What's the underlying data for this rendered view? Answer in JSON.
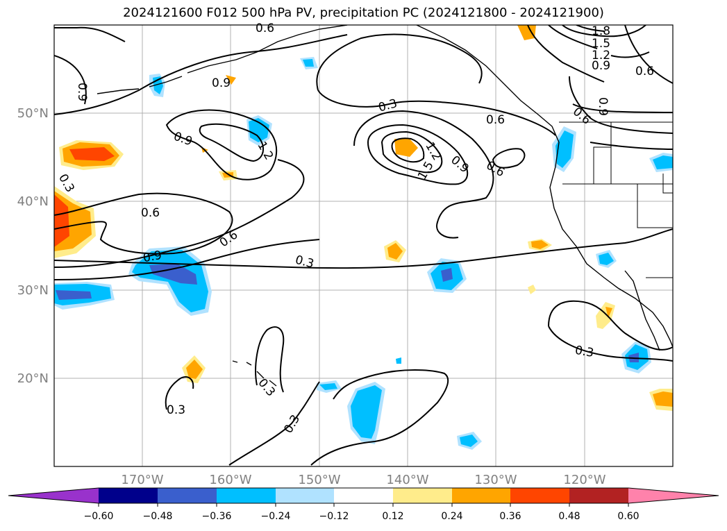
{
  "title": "2024121600 F012 500 hPa PV, precipitation PC (2024121800 - 2024121900)",
  "lat_labels": [
    "50°N",
    "40°N",
    "30°N",
    "20°N"
  ],
  "lon_labels": [
    "170°W",
    "160°W",
    "150°W",
    "140°W",
    "130°W",
    "120°W"
  ],
  "colorbar": {
    "ticks": [
      "−0.60",
      "−0.48",
      "−0.36",
      "−0.24",
      "−0.12",
      "0.12",
      "0.24",
      "0.36",
      "0.48",
      "0.60"
    ],
    "colors": [
      "#9932cc",
      "#00008b",
      "#3a5fcd",
      "#00bfff",
      "#b0e2ff",
      "#ffffff",
      "#ffec8b",
      "#ffa500",
      "#ff4500",
      "#b22222",
      "#ff82ab"
    ]
  },
  "contour_labels": [
    "0.6",
    "1.8",
    "1.5",
    "1.2",
    "0.9",
    "0.6",
    "0.9",
    "0.9",
    "0.9",
    "0.3",
    "0.6",
    "0.6",
    "1.2",
    "0.9",
    "0.3",
    "0.6",
    "0.6",
    "1.2",
    "1.5",
    "0.9",
    "0.6",
    "0.9",
    "0.3",
    "0.3",
    "0.3",
    "0.3",
    "0.3"
  ]
}
